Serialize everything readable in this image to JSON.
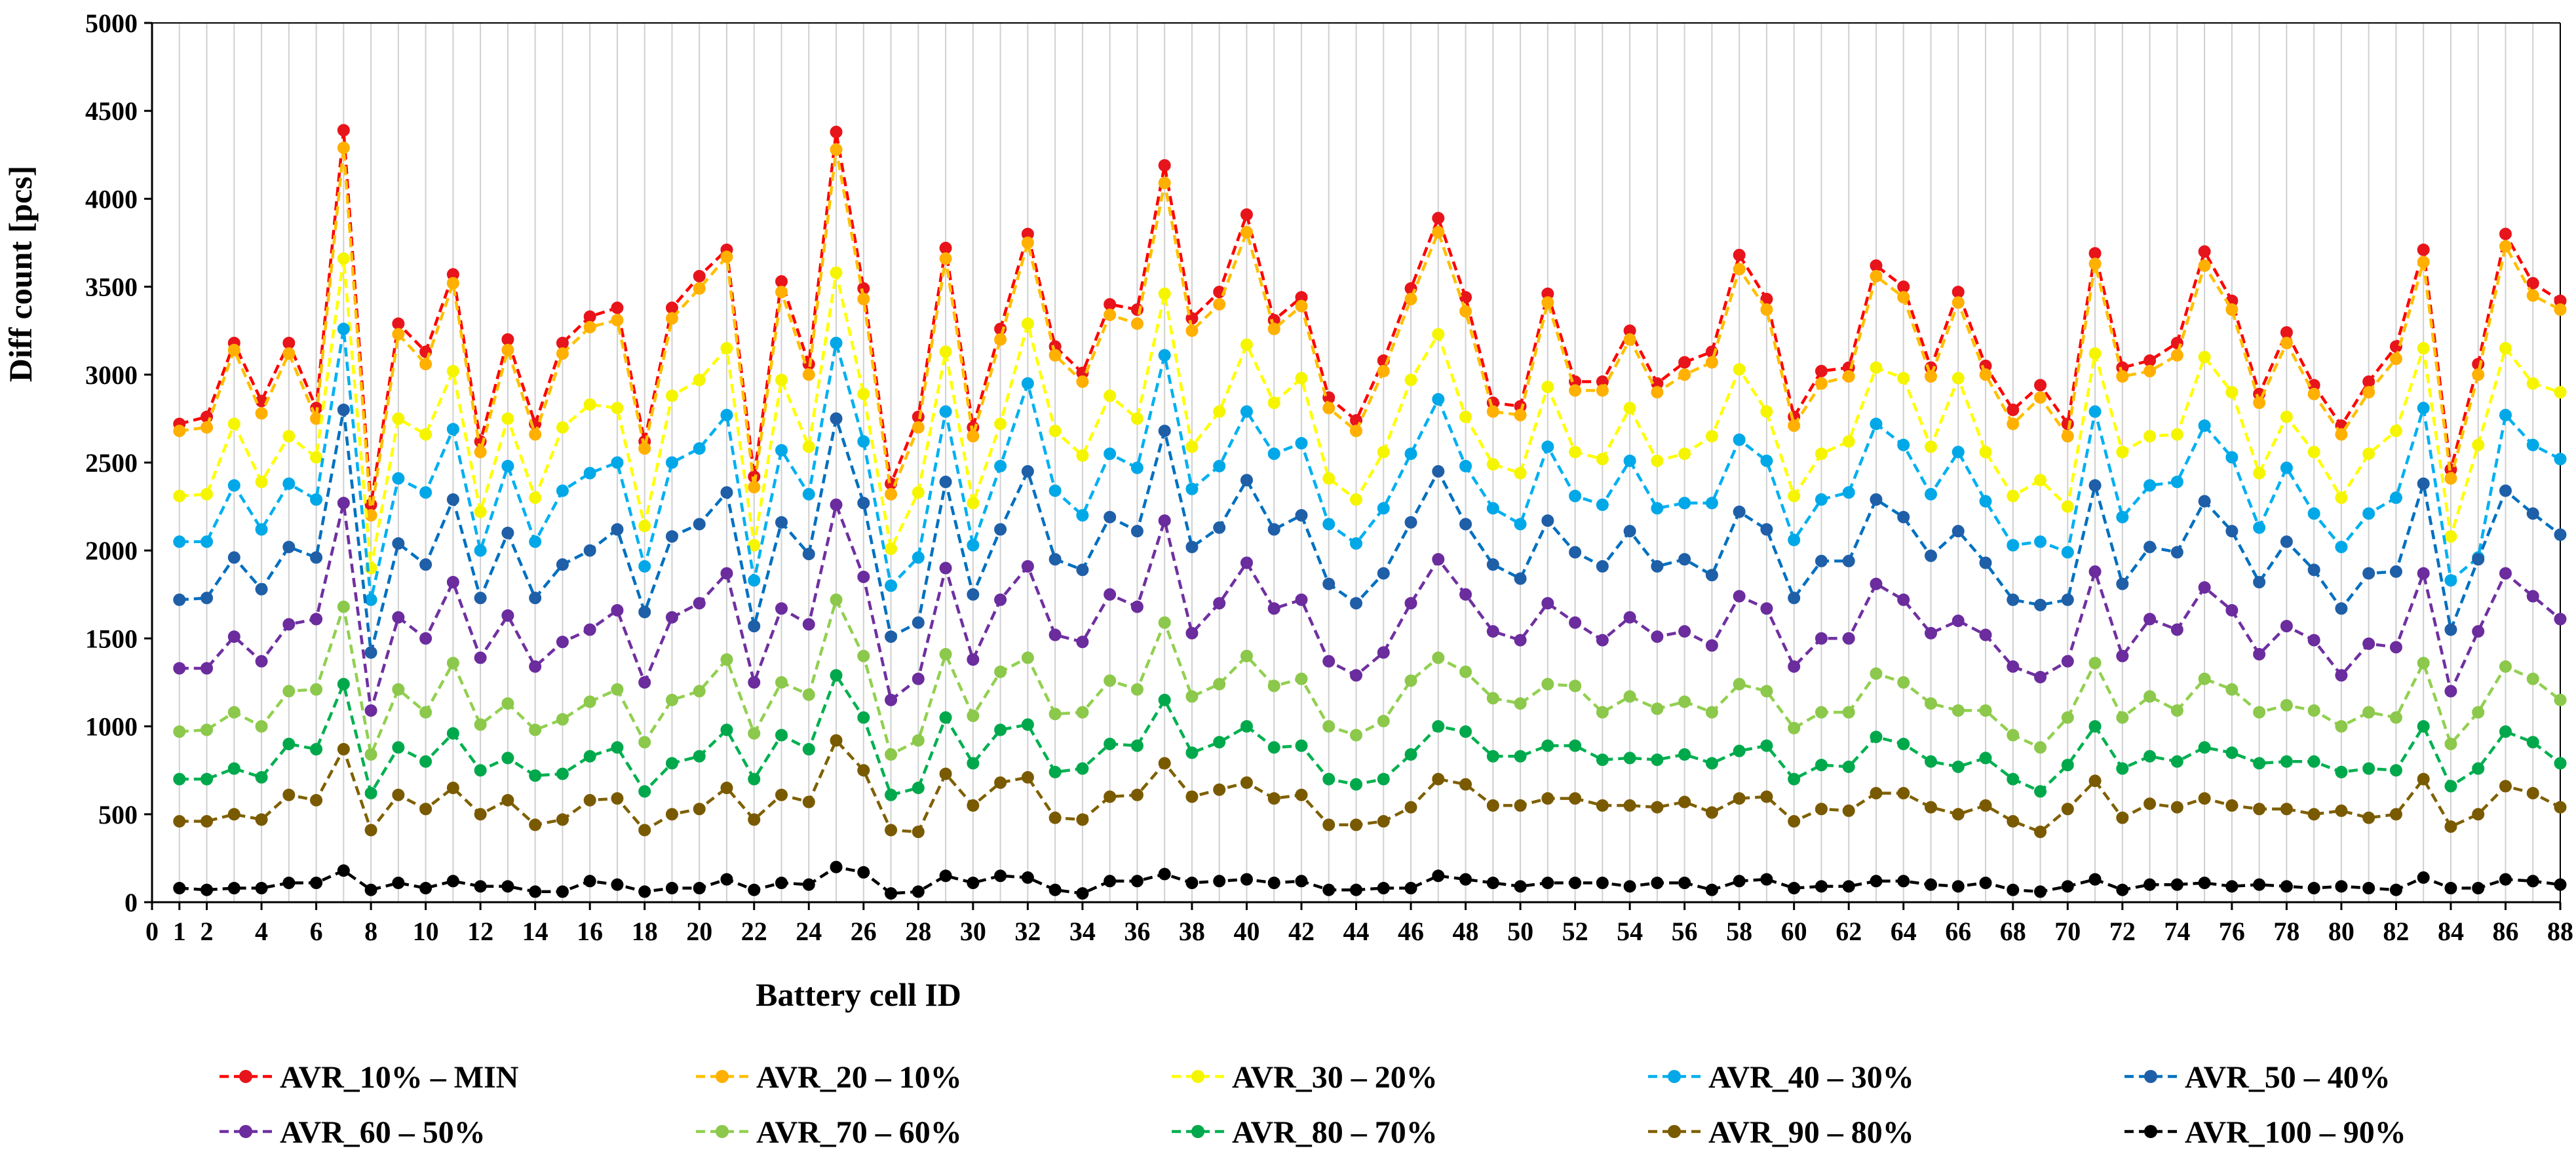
{
  "chart_data": {
    "type": "line",
    "title": "",
    "xlabel": "Battery cell ID",
    "ylabel": "Diff count [pcs]",
    "xlim": [
      0,
      88
    ],
    "ylim": [
      0,
      5000
    ],
    "x_ticks": [
      "0",
      "1",
      "2",
      "4",
      "6",
      "8",
      "10",
      "12",
      "14",
      "16",
      "18",
      "20",
      "22",
      "24",
      "26",
      "28",
      "30",
      "32",
      "34",
      "36",
      "38",
      "40",
      "42",
      "44",
      "46",
      "48",
      "50",
      "52",
      "54",
      "56",
      "58",
      "60",
      "62",
      "64",
      "66",
      "68",
      "70",
      "72",
      "74",
      "76",
      "78",
      "80",
      "82",
      "84",
      "86",
      "88"
    ],
    "x_tick_values": [
      0,
      1,
      2,
      4,
      6,
      8,
      10,
      12,
      14,
      16,
      18,
      20,
      22,
      24,
      26,
      28,
      30,
      32,
      34,
      36,
      38,
      40,
      42,
      44,
      46,
      48,
      50,
      52,
      54,
      56,
      58,
      60,
      62,
      64,
      66,
      68,
      70,
      72,
      74,
      76,
      78,
      80,
      82,
      84,
      86,
      88
    ],
    "y_ticks": [
      "0",
      "500",
      "1000",
      "1500",
      "2000",
      "2500",
      "3000",
      "3500",
      "4000",
      "4500",
      "5000"
    ],
    "y_tick_values": [
      0,
      500,
      1000,
      1500,
      2000,
      2500,
      3000,
      3500,
      4000,
      4500,
      5000
    ],
    "grid": "vertical",
    "legend_position": "bottom",
    "x": [
      1,
      2,
      3,
      4,
      5,
      6,
      7,
      8,
      9,
      10,
      11,
      12,
      13,
      14,
      15,
      16,
      17,
      18,
      19,
      20,
      21,
      22,
      23,
      24,
      25,
      26,
      27,
      28,
      29,
      30,
      31,
      32,
      33,
      34,
      35,
      36,
      37,
      38,
      39,
      40,
      41,
      42,
      43,
      44,
      45,
      46,
      47,
      48,
      49,
      50,
      51,
      52,
      53,
      54,
      55,
      56,
      57,
      58,
      59,
      60,
      61,
      62,
      63,
      64,
      65,
      66,
      67,
      68,
      69,
      70,
      71,
      72,
      73,
      74,
      75,
      76,
      77,
      78,
      79,
      80,
      81,
      82,
      83,
      84,
      85,
      86,
      87,
      88
    ],
    "series": [
      {
        "name": "AVR_10% – MIN",
        "color": "#FF0000",
        "marker_color": "#E8141B",
        "values": [
          2720,
          2760,
          3180,
          2850,
          3180,
          2810,
          4390,
          2260,
          3290,
          3130,
          3570,
          2620,
          3200,
          2720,
          3180,
          3330,
          3380,
          2620,
          3380,
          3560,
          3710,
          2420,
          3530,
          3060,
          4380,
          3490,
          2380,
          2760,
          3720,
          2700,
          3260,
          3800,
          3160,
          3010,
          3400,
          3370,
          4190,
          3320,
          3470,
          3910,
          3310,
          3440,
          2870,
          2740,
          3080,
          3490,
          3890,
          3440,
          2840,
          2820,
          3460,
          2960,
          2960,
          3250,
          2950,
          3070,
          3130,
          3680,
          3430,
          2760,
          3020,
          3040,
          3620,
          3500,
          3040,
          3470,
          3050,
          2800,
          2940,
          2720,
          3690,
          3040,
          3080,
          3180,
          3700,
          3420,
          2890,
          3240,
          2940,
          2710,
          2960,
          3160,
          3710,
          2460,
          3060,
          3800,
          3520,
          3420
        ]
      },
      {
        "name": "AVR_20 – 10%",
        "color": "#FFC000",
        "marker_color": "#FFB000",
        "values": [
          2680,
          2700,
          3140,
          2780,
          3120,
          2750,
          4290,
          2200,
          3230,
          3060,
          3520,
          2560,
          3140,
          2660,
          3120,
          3270,
          3310,
          2580,
          3320,
          3490,
          3670,
          2360,
          3470,
          3000,
          4280,
          3430,
          2320,
          2700,
          3660,
          2650,
          3200,
          3750,
          3110,
          2960,
          3340,
          3290,
          4090,
          3250,
          3400,
          3810,
          3260,
          3390,
          2810,
          2680,
          3020,
          3430,
          3810,
          3360,
          2790,
          2770,
          3410,
          2910,
          2910,
          3200,
          2900,
          3000,
          3070,
          3600,
          3370,
          2710,
          2950,
          2990,
          3560,
          3440,
          2990,
          3410,
          3000,
          2720,
          2870,
          2650,
          3630,
          2990,
          3020,
          3110,
          3620,
          3370,
          2840,
          3180,
          2890,
          2660,
          2900,
          3090,
          3640,
          2410,
          3000,
          3730,
          3450,
          3370
        ]
      },
      {
        "name": "AVR_30 – 20%",
        "color": "#FFFF00",
        "marker_color": "#F5F500",
        "values": [
          2310,
          2320,
          2720,
          2390,
          2650,
          2530,
          3660,
          1900,
          2750,
          2660,
          3020,
          2220,
          2750,
          2300,
          2700,
          2830,
          2810,
          2140,
          2880,
          2970,
          3150,
          2030,
          2970,
          2590,
          3580,
          2890,
          2010,
          2330,
          3130,
          2270,
          2720,
          3290,
          2680,
          2540,
          2880,
          2750,
          3460,
          2590,
          2790,
          3170,
          2840,
          2980,
          2410,
          2290,
          2560,
          2970,
          3230,
          2760,
          2490,
          2440,
          2930,
          2560,
          2520,
          2810,
          2510,
          2550,
          2650,
          3030,
          2790,
          2310,
          2550,
          2620,
          3040,
          2980,
          2590,
          2980,
          2560,
          2310,
          2400,
          2250,
          3120,
          2560,
          2650,
          2660,
          3100,
          2900,
          2440,
          2760,
          2560,
          2300,
          2550,
          2680,
          3150,
          2080,
          2600,
          3150,
          2950,
          2900
        ]
      },
      {
        "name": "AVR_40 – 30%",
        "color": "#00B0F0",
        "marker_color": "#00A8E8",
        "values": [
          2050,
          2050,
          2370,
          2120,
          2380,
          2290,
          3260,
          1720,
          2410,
          2330,
          2690,
          2000,
          2480,
          2050,
          2340,
          2440,
          2500,
          1910,
          2500,
          2580,
          2770,
          1830,
          2570,
          2320,
          3180,
          2620,
          1800,
          1960,
          2790,
          2030,
          2480,
          2950,
          2340,
          2200,
          2550,
          2470,
          3110,
          2350,
          2480,
          2790,
          2550,
          2610,
          2150,
          2040,
          2240,
          2550,
          2860,
          2480,
          2240,
          2150,
          2590,
          2310,
          2260,
          2510,
          2240,
          2270,
          2270,
          2630,
          2510,
          2060,
          2290,
          2330,
          2720,
          2600,
          2320,
          2560,
          2280,
          2030,
          2050,
          1990,
          2790,
          2190,
          2370,
          2390,
          2710,
          2530,
          2130,
          2470,
          2210,
          2020,
          2210,
          2300,
          2810,
          1830,
          1960,
          2770,
          2600,
          2520
        ]
      },
      {
        "name": "AVR_50 – 40%",
        "color": "#0070C0",
        "marker_color": "#1F5FA8",
        "values": [
          1720,
          1730,
          1960,
          1780,
          2020,
          1960,
          2800,
          1420,
          2040,
          1920,
          2290,
          1730,
          2100,
          1730,
          1920,
          2000,
          2120,
          1650,
          2080,
          2150,
          2330,
          1570,
          2160,
          1980,
          2750,
          2270,
          1510,
          1590,
          2390,
          1750,
          2120,
          2450,
          1950,
          1890,
          2190,
          2110,
          2680,
          2020,
          2130,
          2400,
          2120,
          2200,
          1810,
          1700,
          1870,
          2160,
          2450,
          2150,
          1920,
          1840,
          2170,
          1990,
          1910,
          2110,
          1910,
          1950,
          1860,
          2220,
          2120,
          1730,
          1940,
          1940,
          2290,
          2190,
          1970,
          2110,
          1930,
          1720,
          1690,
          1720,
          2370,
          1810,
          2020,
          1990,
          2280,
          2110,
          1820,
          2050,
          1890,
          1670,
          1870,
          1880,
          2380,
          1550,
          1950,
          2340,
          2210,
          2090
        ]
      },
      {
        "name": "AVR_60 – 50%",
        "color": "#7030A0",
        "marker_color": "#6B2C9E",
        "values": [
          1330,
          1330,
          1510,
          1370,
          1580,
          1610,
          2270,
          1090,
          1620,
          1500,
          1820,
          1390,
          1630,
          1340,
          1480,
          1550,
          1660,
          1250,
          1620,
          1700,
          1870,
          1250,
          1670,
          1580,
          2260,
          1850,
          1150,
          1270,
          1900,
          1380,
          1720,
          1910,
          1520,
          1480,
          1750,
          1680,
          2170,
          1530,
          1700,
          1930,
          1670,
          1720,
          1370,
          1290,
          1420,
          1700,
          1950,
          1750,
          1540,
          1490,
          1700,
          1590,
          1490,
          1620,
          1510,
          1540,
          1460,
          1740,
          1670,
          1340,
          1500,
          1500,
          1810,
          1720,
          1530,
          1600,
          1520,
          1340,
          1280,
          1370,
          1880,
          1400,
          1610,
          1550,
          1790,
          1660,
          1410,
          1570,
          1490,
          1290,
          1470,
          1450,
          1870,
          1200,
          1540,
          1870,
          1740,
          1610
        ]
      },
      {
        "name": "AVR_70 – 60%",
        "color": "#92D050",
        "marker_color": "#8CC84B",
        "values": [
          970,
          980,
          1080,
          1000,
          1200,
          1210,
          1680,
          840,
          1210,
          1080,
          1360,
          1010,
          1130,
          980,
          1040,
          1140,
          1210,
          910,
          1150,
          1200,
          1380,
          960,
          1250,
          1180,
          1720,
          1400,
          840,
          920,
          1410,
          1060,
          1310,
          1390,
          1070,
          1080,
          1260,
          1210,
          1590,
          1170,
          1240,
          1400,
          1230,
          1270,
          1000,
          950,
          1030,
          1260,
          1390,
          1310,
          1160,
          1130,
          1240,
          1230,
          1080,
          1170,
          1100,
          1140,
          1080,
          1240,
          1200,
          990,
          1080,
          1080,
          1300,
          1250,
          1130,
          1090,
          1090,
          950,
          880,
          1050,
          1360,
          1050,
          1170,
          1090,
          1270,
          1210,
          1080,
          1120,
          1090,
          1000,
          1080,
          1050,
          1360,
          900,
          1080,
          1340,
          1270,
          1150
        ]
      },
      {
        "name": "AVR_80 – 70%",
        "color": "#00B050",
        "marker_color": "#00A84C",
        "values": [
          700,
          700,
          760,
          710,
          900,
          870,
          1240,
          620,
          880,
          800,
          960,
          750,
          820,
          720,
          730,
          830,
          880,
          630,
          790,
          830,
          980,
          700,
          950,
          870,
          1290,
          1050,
          610,
          650,
          1050,
          790,
          980,
          1010,
          740,
          760,
          900,
          890,
          1150,
          850,
          910,
          1000,
          880,
          890,
          700,
          670,
          700,
          840,
          1000,
          970,
          830,
          830,
          890,
          890,
          810,
          820,
          810,
          840,
          790,
          860,
          890,
          700,
          780,
          770,
          940,
          900,
          800,
          770,
          820,
          700,
          630,
          780,
          1000,
          760,
          830,
          800,
          880,
          850,
          790,
          800,
          800,
          740,
          760,
          750,
          1000,
          660,
          760,
          970,
          910,
          790
        ]
      },
      {
        "name": "AVR_90 – 80%",
        "color": "#7F6000",
        "marker_color": "#7A5A00",
        "values": [
          460,
          460,
          500,
          470,
          610,
          580,
          870,
          410,
          610,
          530,
          650,
          500,
          580,
          440,
          470,
          580,
          590,
          410,
          500,
          530,
          650,
          470,
          610,
          570,
          920,
          750,
          410,
          400,
          730,
          550,
          680,
          710,
          480,
          470,
          600,
          610,
          790,
          600,
          640,
          680,
          590,
          610,
          440,
          440,
          460,
          540,
          700,
          670,
          550,
          550,
          590,
          590,
          550,
          550,
          540,
          570,
          510,
          590,
          600,
          460,
          530,
          520,
          620,
          620,
          540,
          500,
          550,
          460,
          400,
          530,
          690,
          480,
          560,
          540,
          590,
          550,
          530,
          530,
          500,
          520,
          480,
          500,
          700,
          430,
          500,
          660,
          620,
          540
        ]
      },
      {
        "name": "AVR_100 – 90%",
        "color": "#000000",
        "marker_color": "#000000",
        "values": [
          80,
          70,
          80,
          80,
          110,
          110,
          180,
          70,
          110,
          80,
          120,
          90,
          90,
          60,
          60,
          120,
          100,
          60,
          80,
          80,
          130,
          70,
          110,
          100,
          200,
          170,
          50,
          60,
          150,
          110,
          150,
          140,
          70,
          50,
          120,
          120,
          160,
          110,
          120,
          130,
          110,
          120,
          70,
          70,
          80,
          80,
          150,
          130,
          110,
          90,
          110,
          110,
          110,
          90,
          110,
          110,
          70,
          120,
          130,
          80,
          90,
          90,
          120,
          120,
          100,
          90,
          110,
          70,
          60,
          90,
          130,
          70,
          100,
          100,
          110,
          90,
          100,
          90,
          80,
          90,
          80,
          70,
          140,
          80,
          80,
          130,
          120,
          100
        ]
      }
    ]
  }
}
